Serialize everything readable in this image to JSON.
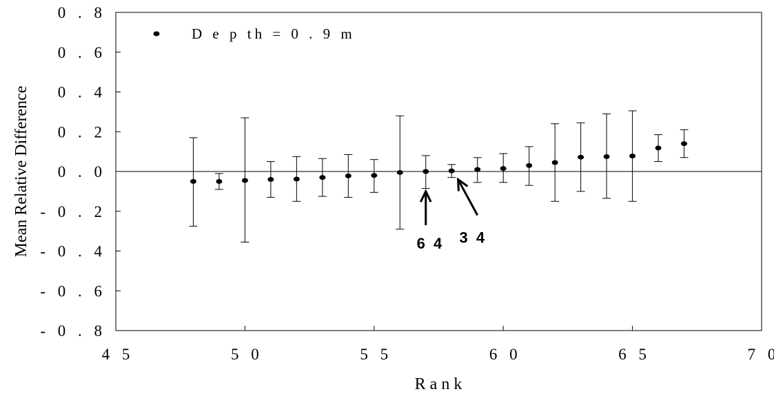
{
  "chart_data": {
    "type": "scatter",
    "xlabel": "R a n k",
    "ylabel": "Mean Relative Difference",
    "xlim": [
      45,
      70
    ],
    "ylim": [
      -0.8,
      0.8
    ],
    "x_ticks": [
      45,
      50,
      55,
      60,
      65,
      70
    ],
    "x_tick_labels": [
      "4 5",
      "5 0",
      "5 5",
      "6 0",
      "6 5",
      "7 0"
    ],
    "y_ticks": [
      0.8,
      0.6,
      0.4,
      0.2,
      0.0,
      -0.2,
      -0.4,
      -0.6,
      -0.8
    ],
    "y_tick_labels": [
      "0 . 8",
      "0 . 6",
      "0 . 4",
      "0 . 2",
      "0 . 0",
      "- 0 . 2",
      "- 0 . 4",
      "- 0 . 6",
      "- 0 . 8"
    ],
    "zero_line": true,
    "grid": false,
    "legend": {
      "position": "top-left",
      "label": "D e p th  =  0 . 9  m"
    },
    "series": [
      {
        "points": [
          {
            "x": 48,
            "y": -0.05,
            "low": -0.275,
            "high": 0.17
          },
          {
            "x": 49,
            "y": -0.05,
            "low": -0.09,
            "high": -0.01
          },
          {
            "x": 50,
            "y": -0.045,
            "low": -0.355,
            "high": 0.27
          },
          {
            "x": 51,
            "y": -0.04,
            "low": -0.13,
            "high": 0.05
          },
          {
            "x": 52,
            "y": -0.038,
            "low": -0.15,
            "high": 0.075
          },
          {
            "x": 53,
            "y": -0.03,
            "low": -0.125,
            "high": 0.065
          },
          {
            "x": 54,
            "y": -0.022,
            "low": -0.13,
            "high": 0.085
          },
          {
            "x": 55,
            "y": -0.02,
            "low": -0.105,
            "high": 0.06
          },
          {
            "x": 56,
            "y": -0.005,
            "low": -0.29,
            "high": 0.28
          },
          {
            "x": 57,
            "y": 0.0,
            "low": -0.085,
            "high": 0.08
          },
          {
            "x": 58,
            "y": 0.003,
            "low": -0.03,
            "high": 0.035
          },
          {
            "x": 59,
            "y": 0.01,
            "low": -0.055,
            "high": 0.07
          },
          {
            "x": 60,
            "y": 0.015,
            "low": -0.055,
            "high": 0.09
          },
          {
            "x": 61,
            "y": 0.03,
            "low": -0.07,
            "high": 0.125
          },
          {
            "x": 62,
            "y": 0.045,
            "low": -0.15,
            "high": 0.24
          },
          {
            "x": 63,
            "y": 0.072,
            "low": -0.1,
            "high": 0.245
          },
          {
            "x": 64,
            "y": 0.075,
            "low": -0.135,
            "high": 0.29
          },
          {
            "x": 65,
            "y": 0.078,
            "low": -0.15,
            "high": 0.305
          },
          {
            "x": 66,
            "y": 0.118,
            "low": 0.05,
            "high": 0.185
          },
          {
            "x": 67,
            "y": 0.14,
            "low": 0.07,
            "high": 0.21
          }
        ]
      }
    ],
    "annotations": [
      {
        "text": "6 4",
        "x": 56.65,
        "y": -0.36,
        "arrow_from": [
          57.0,
          -0.27
        ],
        "arrow_to": [
          57.0,
          -0.1
        ]
      },
      {
        "text": "3 4",
        "x": 58.3,
        "y": -0.33,
        "arrow_from": [
          59.0,
          -0.22
        ],
        "arrow_to": [
          58.25,
          -0.04
        ]
      }
    ]
  }
}
